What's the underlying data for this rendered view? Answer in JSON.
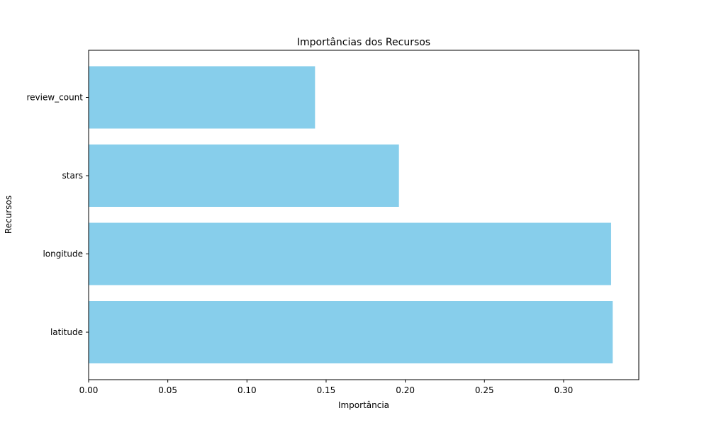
{
  "chart_data": {
    "type": "bar",
    "orientation": "horizontal",
    "title": "Importâncias dos Recursos",
    "xlabel": "Importância",
    "ylabel": "Recursos",
    "categories": [
      "latitude",
      "longitude",
      "stars",
      "review_count"
    ],
    "values": [
      0.331,
      0.33,
      0.196,
      0.143
    ],
    "xlim": [
      0.0,
      0.3475
    ],
    "xticks": [
      "0.00",
      "0.05",
      "0.10",
      "0.15",
      "0.20",
      "0.25",
      "0.30"
    ],
    "grid": false,
    "legend": "none",
    "bar_color": "#87CEEB"
  }
}
